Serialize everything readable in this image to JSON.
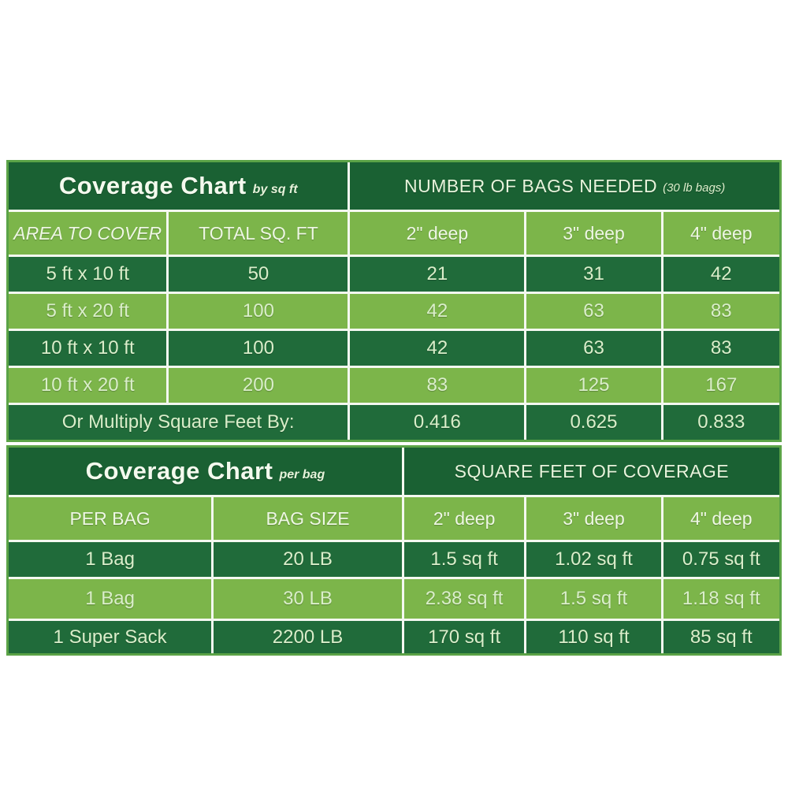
{
  "table_by_sqft": {
    "title": "Coverage Chart",
    "title_suffix": "by sq ft",
    "right_title": "NUMBER OF BAGS NEEDED",
    "right_title_suffix": "(30 lb bags)",
    "columns": [
      "AREA TO COVER",
      "TOTAL SQ. FT",
      "2\" deep",
      "3\" deep",
      "4\" deep"
    ],
    "rows": [
      [
        "5 ft x 10 ft",
        "50",
        "21",
        "31",
        "42"
      ],
      [
        "5 ft x 20 ft",
        "100",
        "42",
        "63",
        "83"
      ],
      [
        "10 ft x 10 ft",
        "100",
        "42",
        "63",
        "83"
      ],
      [
        "10 ft x 20 ft",
        "200",
        "83",
        "125",
        "167"
      ]
    ],
    "footer": {
      "label": "Or Multiply Square Feet By:",
      "values": [
        "0.416",
        "0.625",
        "0.833"
      ]
    }
  },
  "table_per_bag": {
    "title": "Coverage Chart",
    "title_suffix": "per bag",
    "right_title": "SQUARE FEET OF COVERAGE",
    "columns": [
      "PER BAG",
      "BAG SIZE",
      "2\" deep",
      "3\" deep",
      "4\" deep"
    ],
    "rows": [
      [
        "1 Bag",
        "20 LB",
        "1.5 sq ft",
        "1.02 sq ft",
        "0.75 sq ft"
      ],
      [
        "1 Bag",
        "30 LB",
        "2.38 sq ft",
        "1.5 sq ft",
        "1.18 sq ft"
      ],
      [
        "1 Super Sack",
        "2200 LB",
        "170 sq ft",
        "110 sq ft",
        "85 sq ft"
      ]
    ]
  },
  "colors": {
    "title_row_green": "#1a6133",
    "dark_row_green": "#206b3a",
    "light_row_green": "#7cb54a",
    "outer_border_green": "#5ba347",
    "text_pale_green": "#daeeca"
  },
  "chart_data": [
    {
      "type": "table",
      "title": "Coverage Chart by sq ft — NUMBER OF BAGS NEEDED (30 lb bags)",
      "columns": [
        "AREA TO COVER",
        "TOTAL SQ. FT",
        "2\" deep",
        "3\" deep",
        "4\" deep"
      ],
      "rows": [
        [
          "5 ft x 10 ft",
          50,
          21,
          31,
          42
        ],
        [
          "5 ft x 20 ft",
          100,
          42,
          63,
          83
        ],
        [
          "10 ft x 10 ft",
          100,
          42,
          63,
          83
        ],
        [
          "10 ft x 20 ft",
          200,
          83,
          125,
          167
        ]
      ],
      "footer": [
        "Or Multiply Square Feet By:",
        0.416,
        0.625,
        0.833
      ]
    },
    {
      "type": "table",
      "title": "Coverage Chart per bag — SQUARE FEET OF COVERAGE",
      "columns": [
        "PER BAG",
        "BAG SIZE",
        "2\" deep",
        "3\" deep",
        "4\" deep"
      ],
      "rows": [
        [
          "1 Bag",
          "20 LB",
          "1.5 sq ft",
          "1.02 sq ft",
          "0.75 sq ft"
        ],
        [
          "1 Bag",
          "30 LB",
          "2.38 sq ft",
          "1.5 sq ft",
          "1.18 sq ft"
        ],
        [
          "1 Super Sack",
          "2200 LB",
          "170 sq ft",
          "110 sq ft",
          "85 sq ft"
        ]
      ]
    }
  ]
}
